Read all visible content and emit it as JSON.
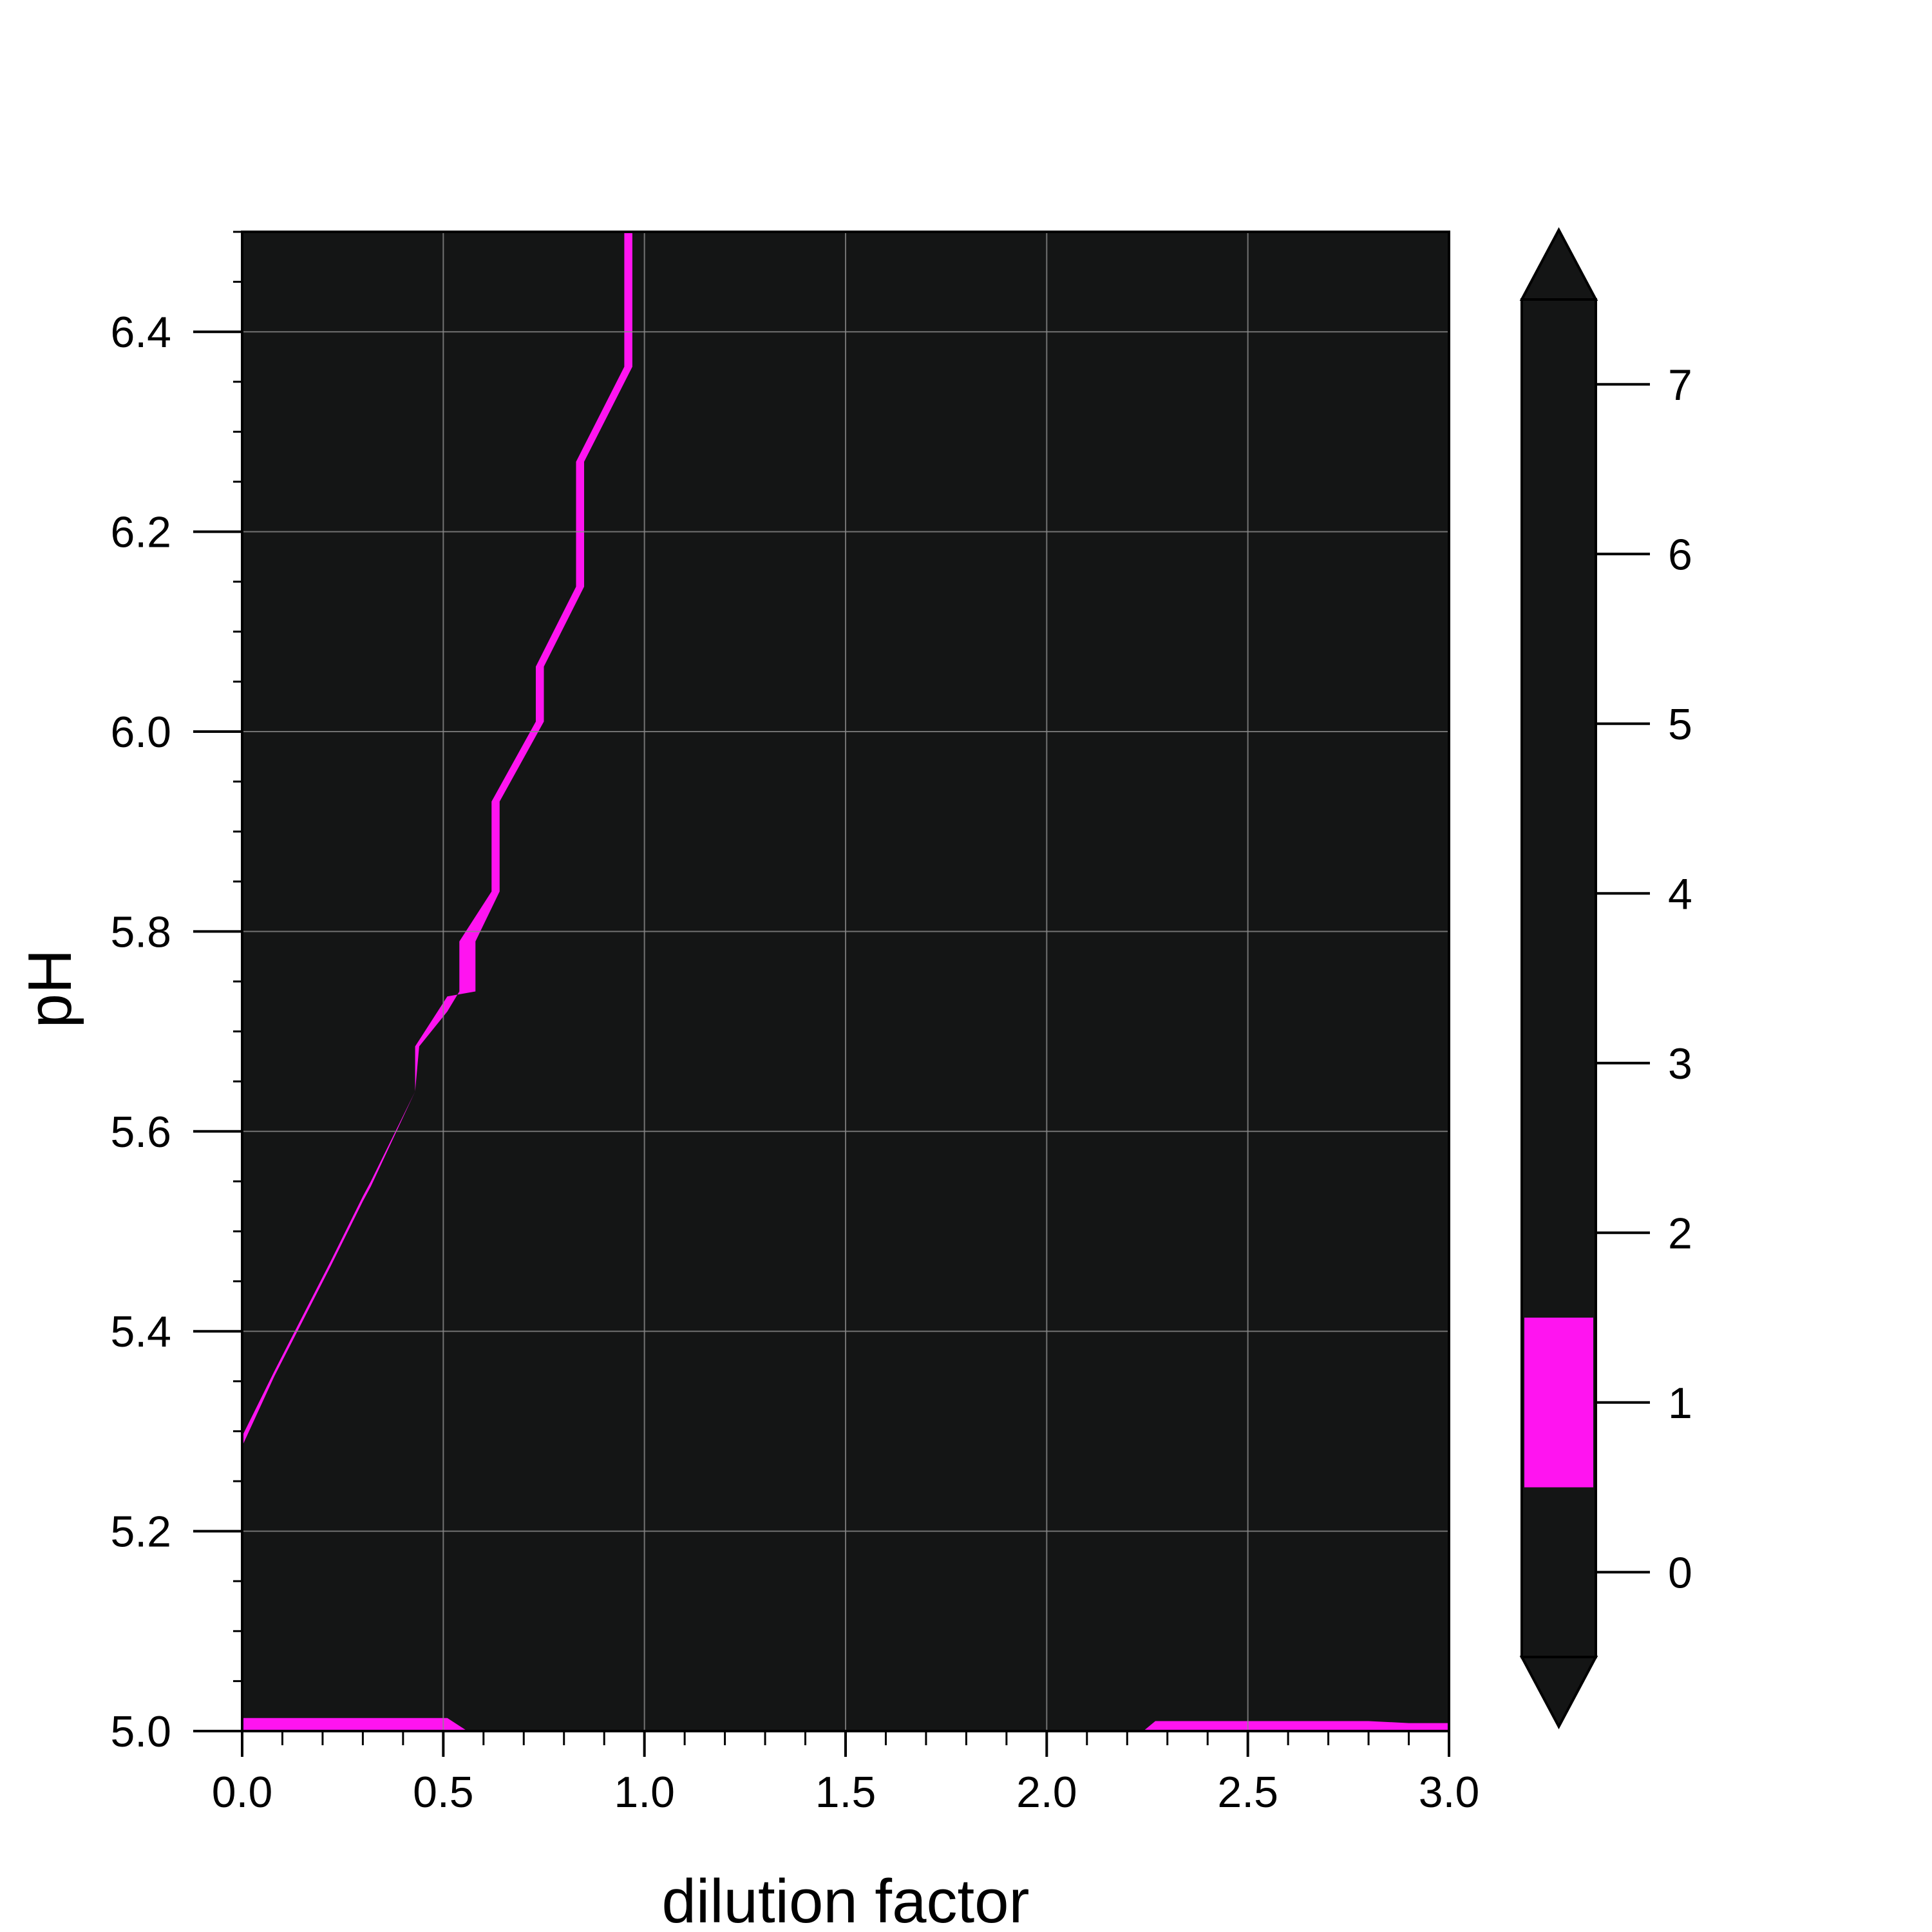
{
  "chart_data": {
    "type": "contourf",
    "title": "",
    "xlabel": "dilution factor",
    "ylabel": "pH",
    "xlim": [
      0.0,
      3.0
    ],
    "ylim": [
      5.0,
      6.5
    ],
    "grid": true,
    "xticks": [
      "0.0",
      "0.5",
      "1.0",
      "1.5",
      "2.0",
      "2.5",
      "3.0"
    ],
    "yticks": [
      "5.0",
      "5.2",
      "5.4",
      "5.6",
      "5.8",
      "6.0",
      "6.2",
      "6.4"
    ],
    "colorbar": {
      "ticks": [
        "0",
        "1",
        "2",
        "3",
        "4",
        "5",
        "6",
        "7"
      ],
      "range": [
        -0.5,
        7.5
      ],
      "extend": "both",
      "background_color": "#141515",
      "highlight_band": [
        0.5,
        1.5
      ],
      "highlight_color": "#ff14f0"
    },
    "bands": [
      {
        "level": 1,
        "color": "#ff14f0",
        "polygon": [
          [
            0.0,
            5.295
          ],
          [
            0.08,
            5.36
          ],
          [
            0.15,
            5.415
          ],
          [
            0.22,
            5.47
          ],
          [
            0.3,
            5.535
          ],
          [
            0.32,
            5.55
          ],
          [
            0.43,
            5.64
          ],
          [
            0.43,
            5.685
          ],
          [
            0.51,
            5.735
          ],
          [
            0.58,
            5.74
          ],
          [
            0.58,
            5.79
          ],
          [
            0.64,
            5.84
          ],
          [
            0.64,
            5.93
          ],
          [
            0.75,
            6.01
          ],
          [
            0.75,
            6.065
          ],
          [
            0.85,
            6.145
          ],
          [
            0.85,
            6.27
          ],
          [
            0.97,
            6.365
          ],
          [
            0.97,
            6.55
          ],
          [
            1.07,
            6.63
          ],
          [
            1.07,
            6.72
          ],
          [
            1.2,
            6.815
          ],
          [
            1.16,
            6.815
          ],
          [
            1.04,
            6.72
          ],
          [
            1.04,
            6.63
          ],
          [
            0.95,
            6.55
          ],
          [
            0.95,
            6.365
          ],
          [
            0.83,
            6.27
          ],
          [
            0.83,
            6.145
          ],
          [
            0.73,
            6.065
          ],
          [
            0.73,
            6.01
          ],
          [
            0.62,
            5.93
          ],
          [
            0.62,
            5.84
          ],
          [
            0.54,
            5.79
          ],
          [
            0.54,
            5.74
          ],
          [
            0.51,
            5.72
          ],
          [
            0.44,
            5.685
          ],
          [
            0.43,
            5.64
          ],
          [
            0.32,
            5.545
          ],
          [
            0.3,
            5.53
          ],
          [
            0.22,
            5.465
          ],
          [
            0.15,
            5.41
          ],
          [
            0.08,
            5.355
          ],
          [
            0.0,
            5.285
          ]
        ]
      },
      {
        "level": 1,
        "color": "#ff14f0",
        "polygon": [
          [
            0.0,
            5.0
          ],
          [
            0.0,
            5.013
          ],
          [
            0.51,
            5.013
          ],
          [
            0.56,
            5.0
          ]
        ]
      },
      {
        "level": 1,
        "color": "#ff14f0",
        "polygon": [
          [
            2.24,
            5.0
          ],
          [
            2.27,
            5.01
          ],
          [
            2.8,
            5.01
          ],
          [
            2.9,
            5.008
          ],
          [
            3.0,
            5.008
          ],
          [
            3.0,
            5.0
          ]
        ]
      }
    ]
  }
}
